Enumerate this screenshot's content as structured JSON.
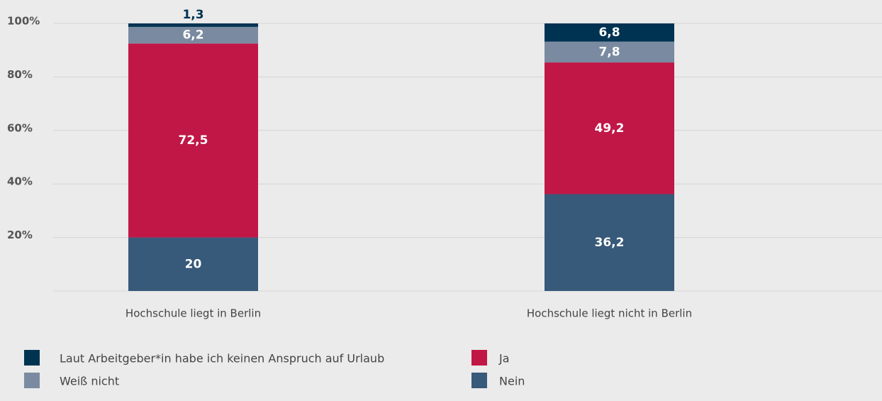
{
  "chart_data": {
    "type": "stacked_bar",
    "categories": [
      "Hochschule liegt in Berlin",
      "Hochschule liegt nicht in Berlin"
    ],
    "series": [
      {
        "name": "Nein",
        "color": "#37597a",
        "values": [
          20,
          36.2
        ],
        "value_labels": [
          "20",
          "36,2"
        ]
      },
      {
        "name": "Ja",
        "color": "#c01746",
        "values": [
          72.5,
          49.2
        ],
        "value_labels": [
          "72,5",
          "49,2"
        ]
      },
      {
        "name": "Weiß nicht",
        "color": "#7a8ba1",
        "values": [
          6.2,
          7.8
        ],
        "value_labels": [
          "6,2",
          "7,8"
        ]
      },
      {
        "name": "Laut Arbeitgeber*in habe ich keinen Anspruch auf Urlaub",
        "color": "#003352",
        "values": [
          1.3,
          6.8
        ],
        "value_labels": [
          "1,3",
          "6,8"
        ]
      }
    ],
    "ylim": [
      0,
      100
    ],
    "yticks": [
      {
        "value": 20,
        "label": "20%"
      },
      {
        "value": 40,
        "label": "40%"
      },
      {
        "value": 60,
        "label": "60%"
      },
      {
        "value": 80,
        "label": "80%"
      },
      {
        "value": 100,
        "label": "100%"
      }
    ],
    "grid": true
  }
}
